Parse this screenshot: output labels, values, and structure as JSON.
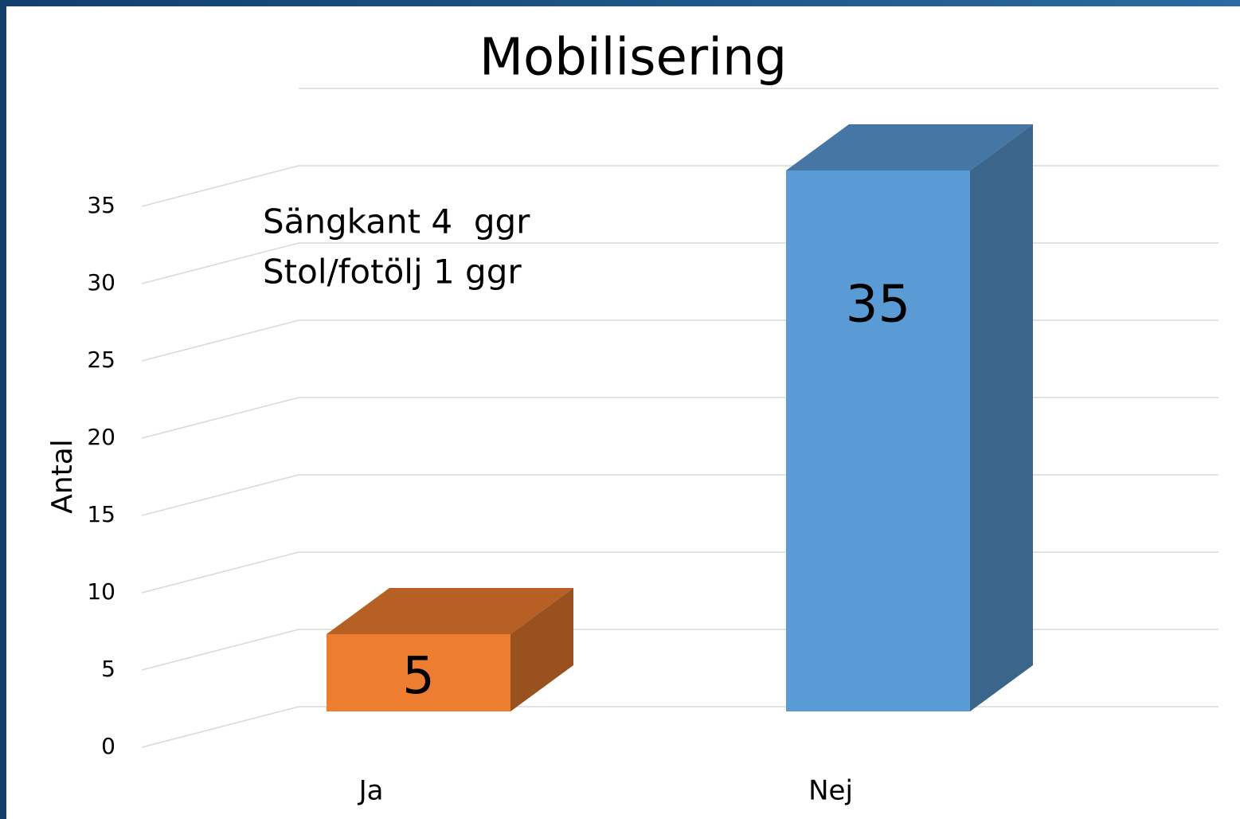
{
  "chart_data": {
    "type": "bar3d",
    "title": "Mobilisering",
    "y_label": "Antal",
    "categories": [
      "Ja",
      "Nej"
    ],
    "values": [
      5,
      35
    ],
    "colors": [
      "#ED7D31",
      "#5B9BD5"
    ],
    "annotations": [
      "Sängkant 4  ggr",
      "Stol/fotölj 1 ggr"
    ],
    "ylim": [
      0,
      40
    ],
    "yticks": [
      0,
      5,
      10,
      15,
      20,
      25,
      30,
      35
    ],
    "grid": true
  }
}
